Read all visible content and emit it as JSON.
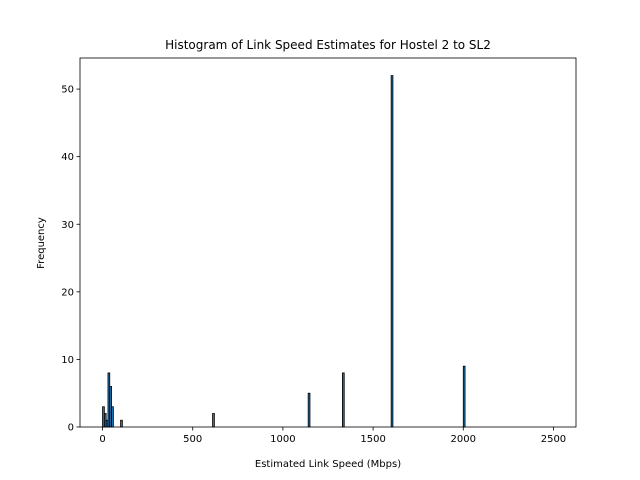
{
  "chart_data": {
    "type": "bar",
    "title": "Histogram of Link Speed Estimates for Hostel 2 to SL2",
    "xlabel": "Estimated Link Speed (Mbps)",
    "ylabel": "Frequency",
    "xlim": [
      -125,
      2625
    ],
    "ylim": [
      0,
      54.6
    ],
    "xticks": [
      0,
      500,
      1000,
      1500,
      2000,
      2500
    ],
    "yticks": [
      0,
      10,
      20,
      30,
      40,
      50
    ],
    "grid": false,
    "bar_color": "#1f77b4",
    "edge_color": "#000000",
    "bin_width": 10,
    "bins": [
      {
        "x": 5,
        "value": 3
      },
      {
        "x": 15,
        "value": 2
      },
      {
        "x": 25,
        "value": 1
      },
      {
        "x": 35,
        "value": 8
      },
      {
        "x": 45,
        "value": 6
      },
      {
        "x": 55,
        "value": 3
      },
      {
        "x": 105,
        "value": 1
      },
      {
        "x": 615,
        "value": 2
      },
      {
        "x": 1145,
        "value": 5
      },
      {
        "x": 1335,
        "value": 8
      },
      {
        "x": 1605,
        "value": 52
      },
      {
        "x": 2005,
        "value": 9
      }
    ]
  }
}
